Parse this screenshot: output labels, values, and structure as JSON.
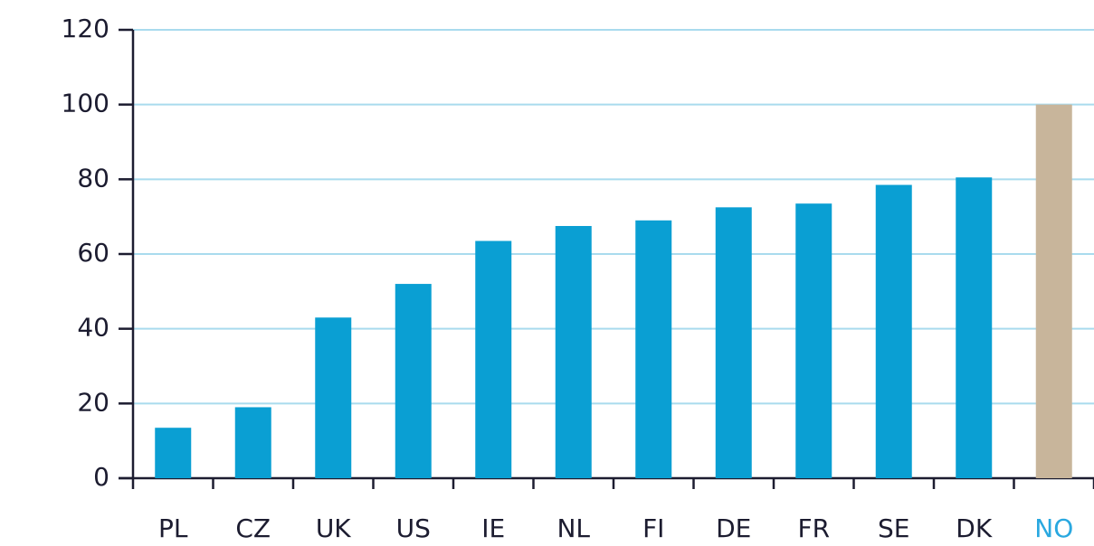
{
  "chart_data": {
    "type": "bar",
    "categories": [
      "PL",
      "CZ",
      "UK",
      "US",
      "IE",
      "NL",
      "FI",
      "DE",
      "FR",
      "SE",
      "DK",
      "NO"
    ],
    "values": [
      13.5,
      19,
      43,
      52,
      63.5,
      67.5,
      69,
      72.5,
      73.5,
      78.5,
      80.5,
      100
    ],
    "colors": [
      "#0a9fd3",
      "#0a9fd3",
      "#0a9fd3",
      "#0a9fd3",
      "#0a9fd3",
      "#0a9fd3",
      "#0a9fd3",
      "#0a9fd3",
      "#0a9fd3",
      "#0a9fd3",
      "#0a9fd3",
      "#c8b59b"
    ],
    "label_colors": [
      "#1c1c30",
      "#1c1c30",
      "#1c1c30",
      "#1c1c30",
      "#1c1c30",
      "#1c1c30",
      "#1c1c30",
      "#1c1c30",
      "#1c1c30",
      "#1c1c30",
      "#1c1c30",
      "#29a8e0"
    ],
    "ylim": [
      0,
      120
    ],
    "yticks": [
      0,
      20,
      40,
      60,
      80,
      100,
      120
    ],
    "grid": true
  }
}
